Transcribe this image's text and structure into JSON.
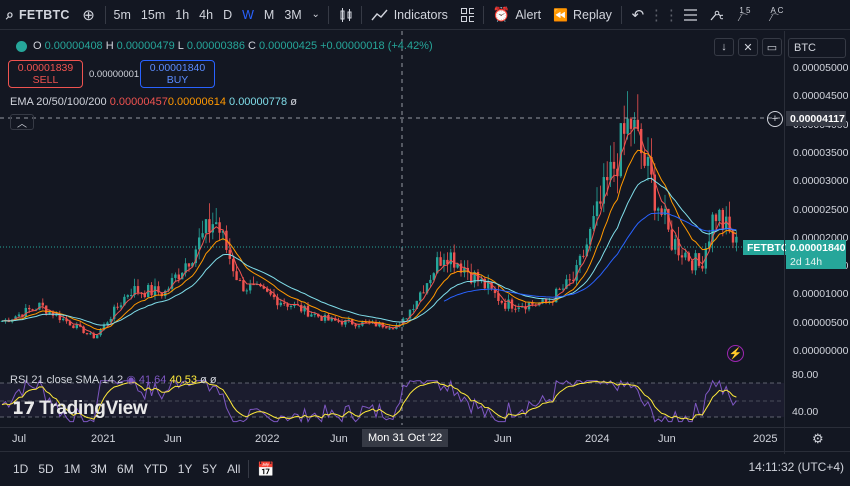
{
  "toolbar": {
    "symbol": "FETBTC",
    "intervals": [
      "5m",
      "15m",
      "1h",
      "4h",
      "D",
      "W",
      "M",
      "3M"
    ],
    "active_interval": "W",
    "indicators_label": "Indicators",
    "alert_label": "Alert",
    "replay_label": "Replay"
  },
  "legend": {
    "open_key": "O",
    "open": "0.00000408",
    "high_key": "H",
    "high": "0.00000479",
    "low_key": "L",
    "low": "0.00000386",
    "close_key": "C",
    "close": "0.00000425",
    "change": "+0.00000018 (+4.42%)",
    "sell_price": "0.00001839",
    "sell_label": "SELL",
    "spread": "0.00000001",
    "buy_price": "0.00001840",
    "buy_label": "BUY",
    "ema_label": "EMA 20/50/100/200",
    "ema_values": [
      "0.00000457",
      "0.00000614",
      "0.00000778",
      "ø"
    ],
    "rsi_label": "RSI 21 close SMA 14 2",
    "rsi_value": "41.64",
    "rsi_sma": "40.53",
    "rsi_extra": [
      "ø",
      "ø"
    ]
  },
  "price_axis": {
    "currency": "BTC",
    "ticks": [
      "0.00005000",
      "0.00004500",
      "0.00004000",
      "0.00003500",
      "0.00003000",
      "0.00002500",
      "0.00002000",
      "0.00001500",
      "0.00001000",
      "0.00000500",
      "0.00000000"
    ],
    "crosshair_price": "0.00004117",
    "current_price": "0.00001840",
    "countdown": "2d 14h",
    "symbol_tag": "FETBTC"
  },
  "rsi_axis": {
    "ticks": [
      "80.00",
      "40.00"
    ]
  },
  "time_axis": {
    "labels": [
      "Jul",
      "2021",
      "Jun",
      "2022",
      "Jun",
      "Jun",
      "2024",
      "Jun",
      "2025"
    ],
    "crosshair_time": "Mon 31 Oct '22"
  },
  "bottom": {
    "ranges": [
      "1D",
      "5D",
      "1M",
      "3M",
      "6M",
      "YTD",
      "1Y",
      "5Y",
      "All"
    ],
    "clock": "14:11:32 (UTC+4)"
  },
  "watermark": "TradingView",
  "colors": {
    "up": "#26a69a",
    "down": "#ef5350",
    "ema20": "#ef5350",
    "ema50": "#ff9800",
    "ema100": "#80deea",
    "ema200": "#2962ff",
    "rsi": "#7e57c2",
    "rsi_sma": "#ffeb3b"
  },
  "chart_data": {
    "type": "candlestick",
    "price_unit": "BTC",
    "ylim": [
      0,
      5e-05
    ],
    "weekly_close_trend": [
      {
        "period": "2020 Jul",
        "close": 5.5e-06
      },
      {
        "period": "2020 Sep",
        "close": 8.2e-06
      },
      {
        "period": "2020 Dec",
        "close": 2.5e-06
      },
      {
        "period": "2021 Mar",
        "close": 1.1e-05
      },
      {
        "period": "2021 Jun",
        "close": 1.05e-05
      },
      {
        "period": "2021 Sep",
        "close": 2.35e-05
      },
      {
        "period": "2021 Dec",
        "close": 1.2e-05
      },
      {
        "period": "2022 Mar",
        "close": 9.5e-06
      },
      {
        "period": "2022 Jun",
        "close": 5.5e-06
      },
      {
        "period": "2022 Oct",
        "close": 4.5e-06
      },
      {
        "period": "2023 Feb",
        "close": 1.8e-05
      },
      {
        "period": "2023 Jun",
        "close": 8.5e-06
      },
      {
        "period": "2023 Oct",
        "close": 8.5e-06
      },
      {
        "period": "2024 Jan",
        "close": 1.3e-05
      },
      {
        "period": "2024 Mar",
        "close": 4.1e-05
      },
      {
        "period": "2024 Jun",
        "close": 2e-05
      },
      {
        "period": "2024 Aug",
        "close": 1.5e-05
      },
      {
        "period": "2024 Oct",
        "close": 2.5e-05
      },
      {
        "period": "2024 Nov",
        "close": 1.84e-05
      }
    ]
  }
}
